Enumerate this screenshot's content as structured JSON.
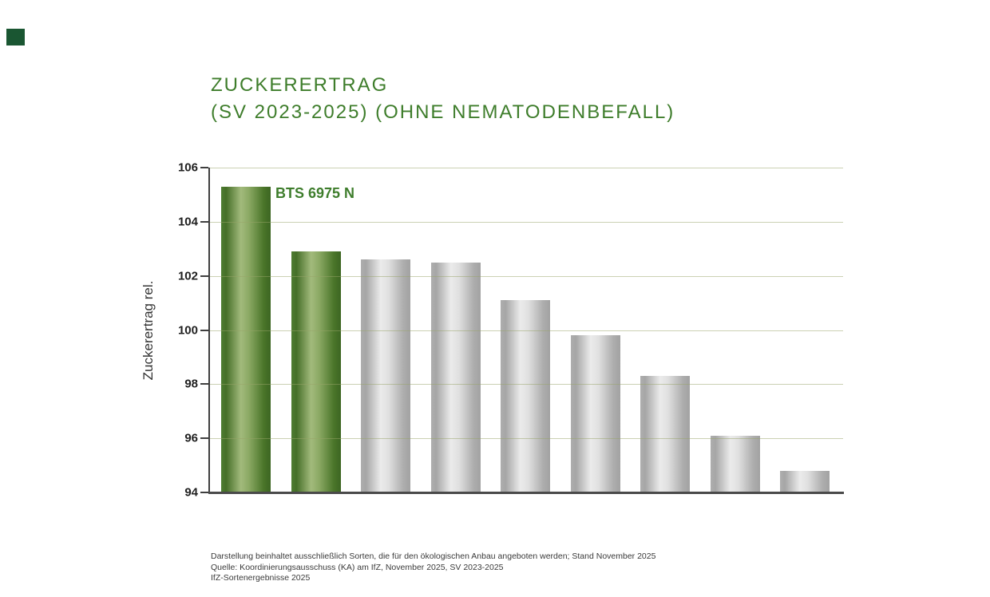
{
  "brand": {
    "square_color": "#1a5632"
  },
  "title": {
    "line1": "ZUCKERERTRAG",
    "line2": "(SV 2023-2025) (OHNE NEMATODENBEFALL)",
    "color": "#3e7d2b"
  },
  "chart_data": {
    "type": "bar",
    "title": "ZUCKERERTRAG (SV 2023-2025) (OHNE NEMATODENBEFALL)",
    "xlabel": "",
    "ylabel": "Zuckerertrag rel.",
    "ylim": [
      94,
      106
    ],
    "yticks": [
      106,
      104,
      102,
      100,
      98,
      96,
      94
    ],
    "grid": true,
    "legend": "none",
    "annotation": {
      "text": "BTS 6975 N",
      "bar_index": 0
    },
    "series": [
      {
        "name": "Zuckerertrag rel.",
        "bars": [
          {
            "label": "BTS 6975 N",
            "value": 105.3,
            "highlighted": true
          },
          {
            "label": "",
            "value": 102.9,
            "highlighted": true
          },
          {
            "label": "",
            "value": 102.6,
            "highlighted": false
          },
          {
            "label": "",
            "value": 102.5,
            "highlighted": false
          },
          {
            "label": "",
            "value": 101.1,
            "highlighted": false
          },
          {
            "label": "",
            "value": 99.8,
            "highlighted": false
          },
          {
            "label": "",
            "value": 98.3,
            "highlighted": false
          },
          {
            "label": "",
            "value": 96.1,
            "highlighted": false
          },
          {
            "label": "",
            "value": 94.8,
            "highlighted": false
          }
        ]
      }
    ],
    "colors": {
      "highlight_bar": "#4a7a2b",
      "default_bar": "#c8c8c8",
      "gridline": "#c6d0a8",
      "axis": "#3f3f3f",
      "annotation": "#3e7d2c",
      "tick_label": "#1f1f1f"
    }
  },
  "footnotes": [
    "Darstellung beinhaltet ausschließlich Sorten, die für den ökologischen Anbau angeboten werden; Stand November 2025",
    "Quelle: Koordinierungsausschuss (KA) am IfZ, November 2025, SV 2023-2025",
    "IfZ-Sortenergebnisse 2025"
  ]
}
